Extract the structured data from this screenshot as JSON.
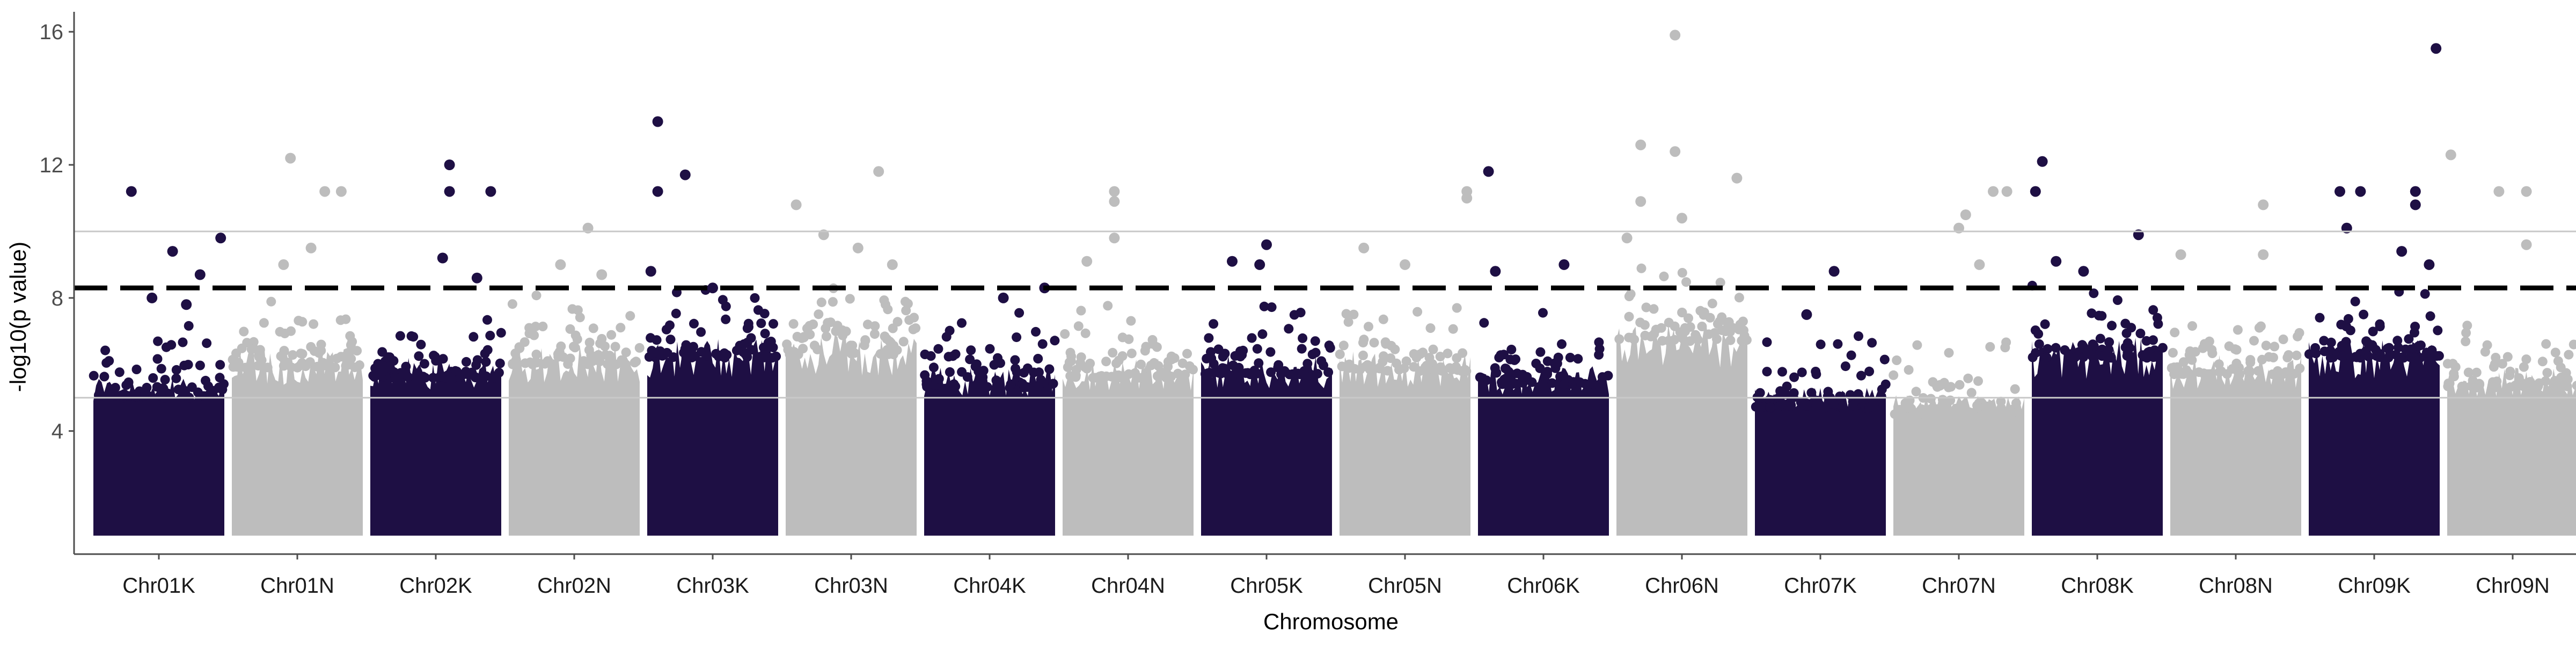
{
  "chart_data": {
    "type": "scatter",
    "variant": "manhattan",
    "title": "",
    "xlabel": "Chromosome",
    "ylabel": "-log10(p value)",
    "ylim": [
      0.3,
      16.6
    ],
    "yticks": [
      4,
      8,
      12,
      16
    ],
    "grid": false,
    "legend": "none",
    "colors": {
      "dark": "#1e0f44",
      "light": "#bdbdbd",
      "threshold_dashed": "#000000",
      "threshold_solid": "#c8c8c8",
      "axis": "#4d4d4d"
    },
    "thresholds": [
      {
        "value": 8.3,
        "style": "dashed"
      },
      {
        "value": 10.0,
        "style": "solid"
      },
      {
        "value": 5.0,
        "style": "solid"
      }
    ],
    "categories": [
      "Chr01K",
      "Chr01N",
      "Chr02K",
      "Chr02N",
      "Chr03K",
      "Chr03N",
      "Chr04K",
      "Chr04N",
      "Chr05K",
      "Chr05N",
      "Chr06K",
      "Chr06N",
      "Chr07K",
      "Chr07N",
      "Chr08K",
      "Chr08N",
      "Chr09K",
      "Chr09N"
    ],
    "band_top_estimate": [
      5.6,
      6.5,
      6.2,
      6.6,
      6.8,
      6.9,
      5.9,
      6.2,
      6.3,
      6.4,
      6.0,
      7.3,
      5.3,
      5.1,
      6.8,
      6.3,
      6.8,
      5.9
    ],
    "series": [
      {
        "name": "Chr01K",
        "color": "dark",
        "peaks": [
          [
            0.3,
            11.2
          ],
          [
            0.6,
            9.4
          ],
          [
            0.8,
            8.7
          ],
          [
            0.95,
            9.8
          ],
          [
            0.45,
            8.0
          ],
          [
            0.7,
            7.8
          ]
        ]
      },
      {
        "name": "Chr01N",
        "color": "light",
        "peaks": [
          [
            0.45,
            12.2
          ],
          [
            0.7,
            11.2
          ],
          [
            0.82,
            11.2
          ],
          [
            0.4,
            9.0
          ],
          [
            0.6,
            9.5
          ]
        ]
      },
      {
        "name": "Chr02K",
        "color": "dark",
        "peaks": [
          [
            0.6,
            12.0
          ],
          [
            0.6,
            11.2
          ],
          [
            0.9,
            11.2
          ],
          [
            0.55,
            9.2
          ],
          [
            0.8,
            8.6
          ]
        ]
      },
      {
        "name": "Chr02N",
        "color": "light",
        "peaks": [
          [
            0.6,
            10.1
          ],
          [
            0.4,
            9.0
          ],
          [
            0.7,
            8.7
          ]
        ]
      },
      {
        "name": "Chr03K",
        "color": "dark",
        "peaks": [
          [
            0.1,
            13.3
          ],
          [
            0.1,
            11.2
          ],
          [
            0.3,
            11.7
          ],
          [
            0.05,
            8.8
          ],
          [
            0.5,
            8.3
          ]
        ]
      },
      {
        "name": "Chr03N",
        "color": "light",
        "peaks": [
          [
            0.7,
            11.8
          ],
          [
            0.1,
            10.8
          ],
          [
            0.3,
            9.9
          ],
          [
            0.55,
            9.5
          ],
          [
            0.8,
            9.0
          ]
        ]
      },
      {
        "name": "Chr04K",
        "color": "dark",
        "peaks": [
          [
            0.9,
            8.3
          ],
          [
            0.6,
            8.0
          ]
        ]
      },
      {
        "name": "Chr04N",
        "color": "light",
        "peaks": [
          [
            0.4,
            11.2
          ],
          [
            0.4,
            10.9
          ],
          [
            0.2,
            9.1
          ],
          [
            0.4,
            9.8
          ]
        ]
      },
      {
        "name": "Chr05K",
        "color": "dark",
        "peaks": [
          [
            0.5,
            9.6
          ],
          [
            0.25,
            9.1
          ],
          [
            0.45,
            9.0
          ]
        ]
      },
      {
        "name": "Chr05N",
        "color": "light",
        "peaks": [
          [
            0.95,
            11.2
          ],
          [
            0.95,
            11.0
          ],
          [
            0.2,
            9.5
          ],
          [
            0.5,
            9.0
          ]
        ]
      },
      {
        "name": "Chr06K",
        "color": "dark",
        "peaks": [
          [
            0.1,
            11.8
          ],
          [
            0.15,
            8.8
          ],
          [
            0.65,
            9.0
          ]
        ]
      },
      {
        "name": "Chr06N",
        "color": "light",
        "peaks": [
          [
            0.45,
            15.9
          ],
          [
            0.2,
            12.6
          ],
          [
            0.45,
            12.4
          ],
          [
            0.9,
            11.6
          ],
          [
            0.2,
            10.9
          ],
          [
            0.5,
            10.4
          ],
          [
            0.1,
            9.8
          ]
        ]
      },
      {
        "name": "Chr07K",
        "color": "dark",
        "peaks": [
          [
            0.6,
            8.8
          ],
          [
            0.4,
            7.5
          ]
        ]
      },
      {
        "name": "Chr07N",
        "color": "light",
        "peaks": [
          [
            0.55,
            10.5
          ],
          [
            0.75,
            11.2
          ],
          [
            0.85,
            11.2
          ],
          [
            0.5,
            10.1
          ],
          [
            0.65,
            9.0
          ]
        ]
      },
      {
        "name": "Chr08K",
        "color": "dark",
        "peaks": [
          [
            0.1,
            12.1
          ],
          [
            0.05,
            11.2
          ],
          [
            0.8,
            9.9
          ],
          [
            0.4,
            8.8
          ],
          [
            0.2,
            9.1
          ]
        ]
      },
      {
        "name": "Chr08N",
        "color": "light",
        "peaks": [
          [
            0.7,
            10.8
          ],
          [
            0.1,
            9.3
          ],
          [
            0.7,
            9.3
          ]
        ]
      },
      {
        "name": "Chr09K",
        "color": "dark",
        "peaks": [
          [
            0.95,
            15.5
          ],
          [
            0.25,
            11.2
          ],
          [
            0.4,
            11.2
          ],
          [
            0.8,
            11.2
          ],
          [
            0.8,
            10.8
          ],
          [
            0.3,
            10.1
          ],
          [
            0.9,
            9.0
          ],
          [
            0.7,
            9.4
          ]
        ]
      },
      {
        "name": "Chr09N",
        "color": "light",
        "peaks": [
          [
            0.05,
            12.3
          ],
          [
            0.6,
            11.2
          ],
          [
            0.4,
            11.2
          ],
          [
            0.6,
            9.6
          ]
        ]
      }
    ]
  }
}
